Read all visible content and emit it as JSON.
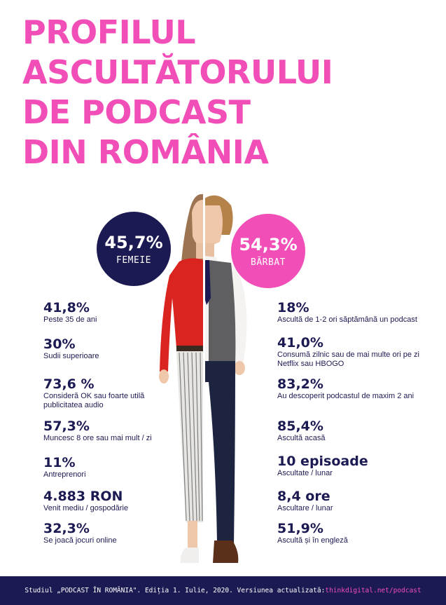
{
  "title_lines": [
    "PROFILUL",
    "ASCULTĂTORULUI",
    "DE PODCAST",
    "DIN ROMÂNIA"
  ],
  "female": {
    "percent": "45,7%",
    "label": "FEMEIE"
  },
  "male": {
    "percent": "54,3%",
    "label": "BĂRBAT"
  },
  "left_stats": [
    {
      "value": "41,8%",
      "desc": "Peste 35 de ani"
    },
    {
      "value": "30%",
      "desc": "Sudii superioare"
    },
    {
      "value": "73,6 %",
      "desc": "Consideră OK sau foarte utilă publicitatea audio"
    },
    {
      "value": "57,3%",
      "desc": "Muncesc 8 ore sau mai mult / zi"
    },
    {
      "value": "11%",
      "desc": "Antreprenori"
    },
    {
      "value": "4.883 RON",
      "desc": "Venit mediu / gospodărie"
    },
    {
      "value": "32,3%",
      "desc": "Se joacă jocuri online"
    }
  ],
  "right_stats": [
    {
      "value": "18%",
      "desc": "Ascultă de 1-2 ori săptămână un podcast"
    },
    {
      "value": "41,0%",
      "desc": "Consumă zilnic sau de mai multe ori pe zi Netflix sau HBOGO"
    },
    {
      "value": "83,2%",
      "desc": "Au descoperit podcastul de maxim 2 ani"
    },
    {
      "value": "85,4%",
      "desc": "Ascultă acasă"
    },
    {
      "value": "10 episoade",
      "desc": "Ascultate / lunar"
    },
    {
      "value": "8,4 ore",
      "desc": "Ascultare / lunar"
    },
    {
      "value": "51,9%",
      "desc": "Ascultă și în engleză"
    }
  ],
  "footer": {
    "text": "Studiul „PODCAST ÎN ROMÂNIA\". Ediția 1. Iulie, 2020. Versiunea actualizată: ",
    "link": "thinkdigital.net/podcast"
  },
  "colors": {
    "pink": "#f14fb7",
    "navy": "#1c1a52"
  }
}
